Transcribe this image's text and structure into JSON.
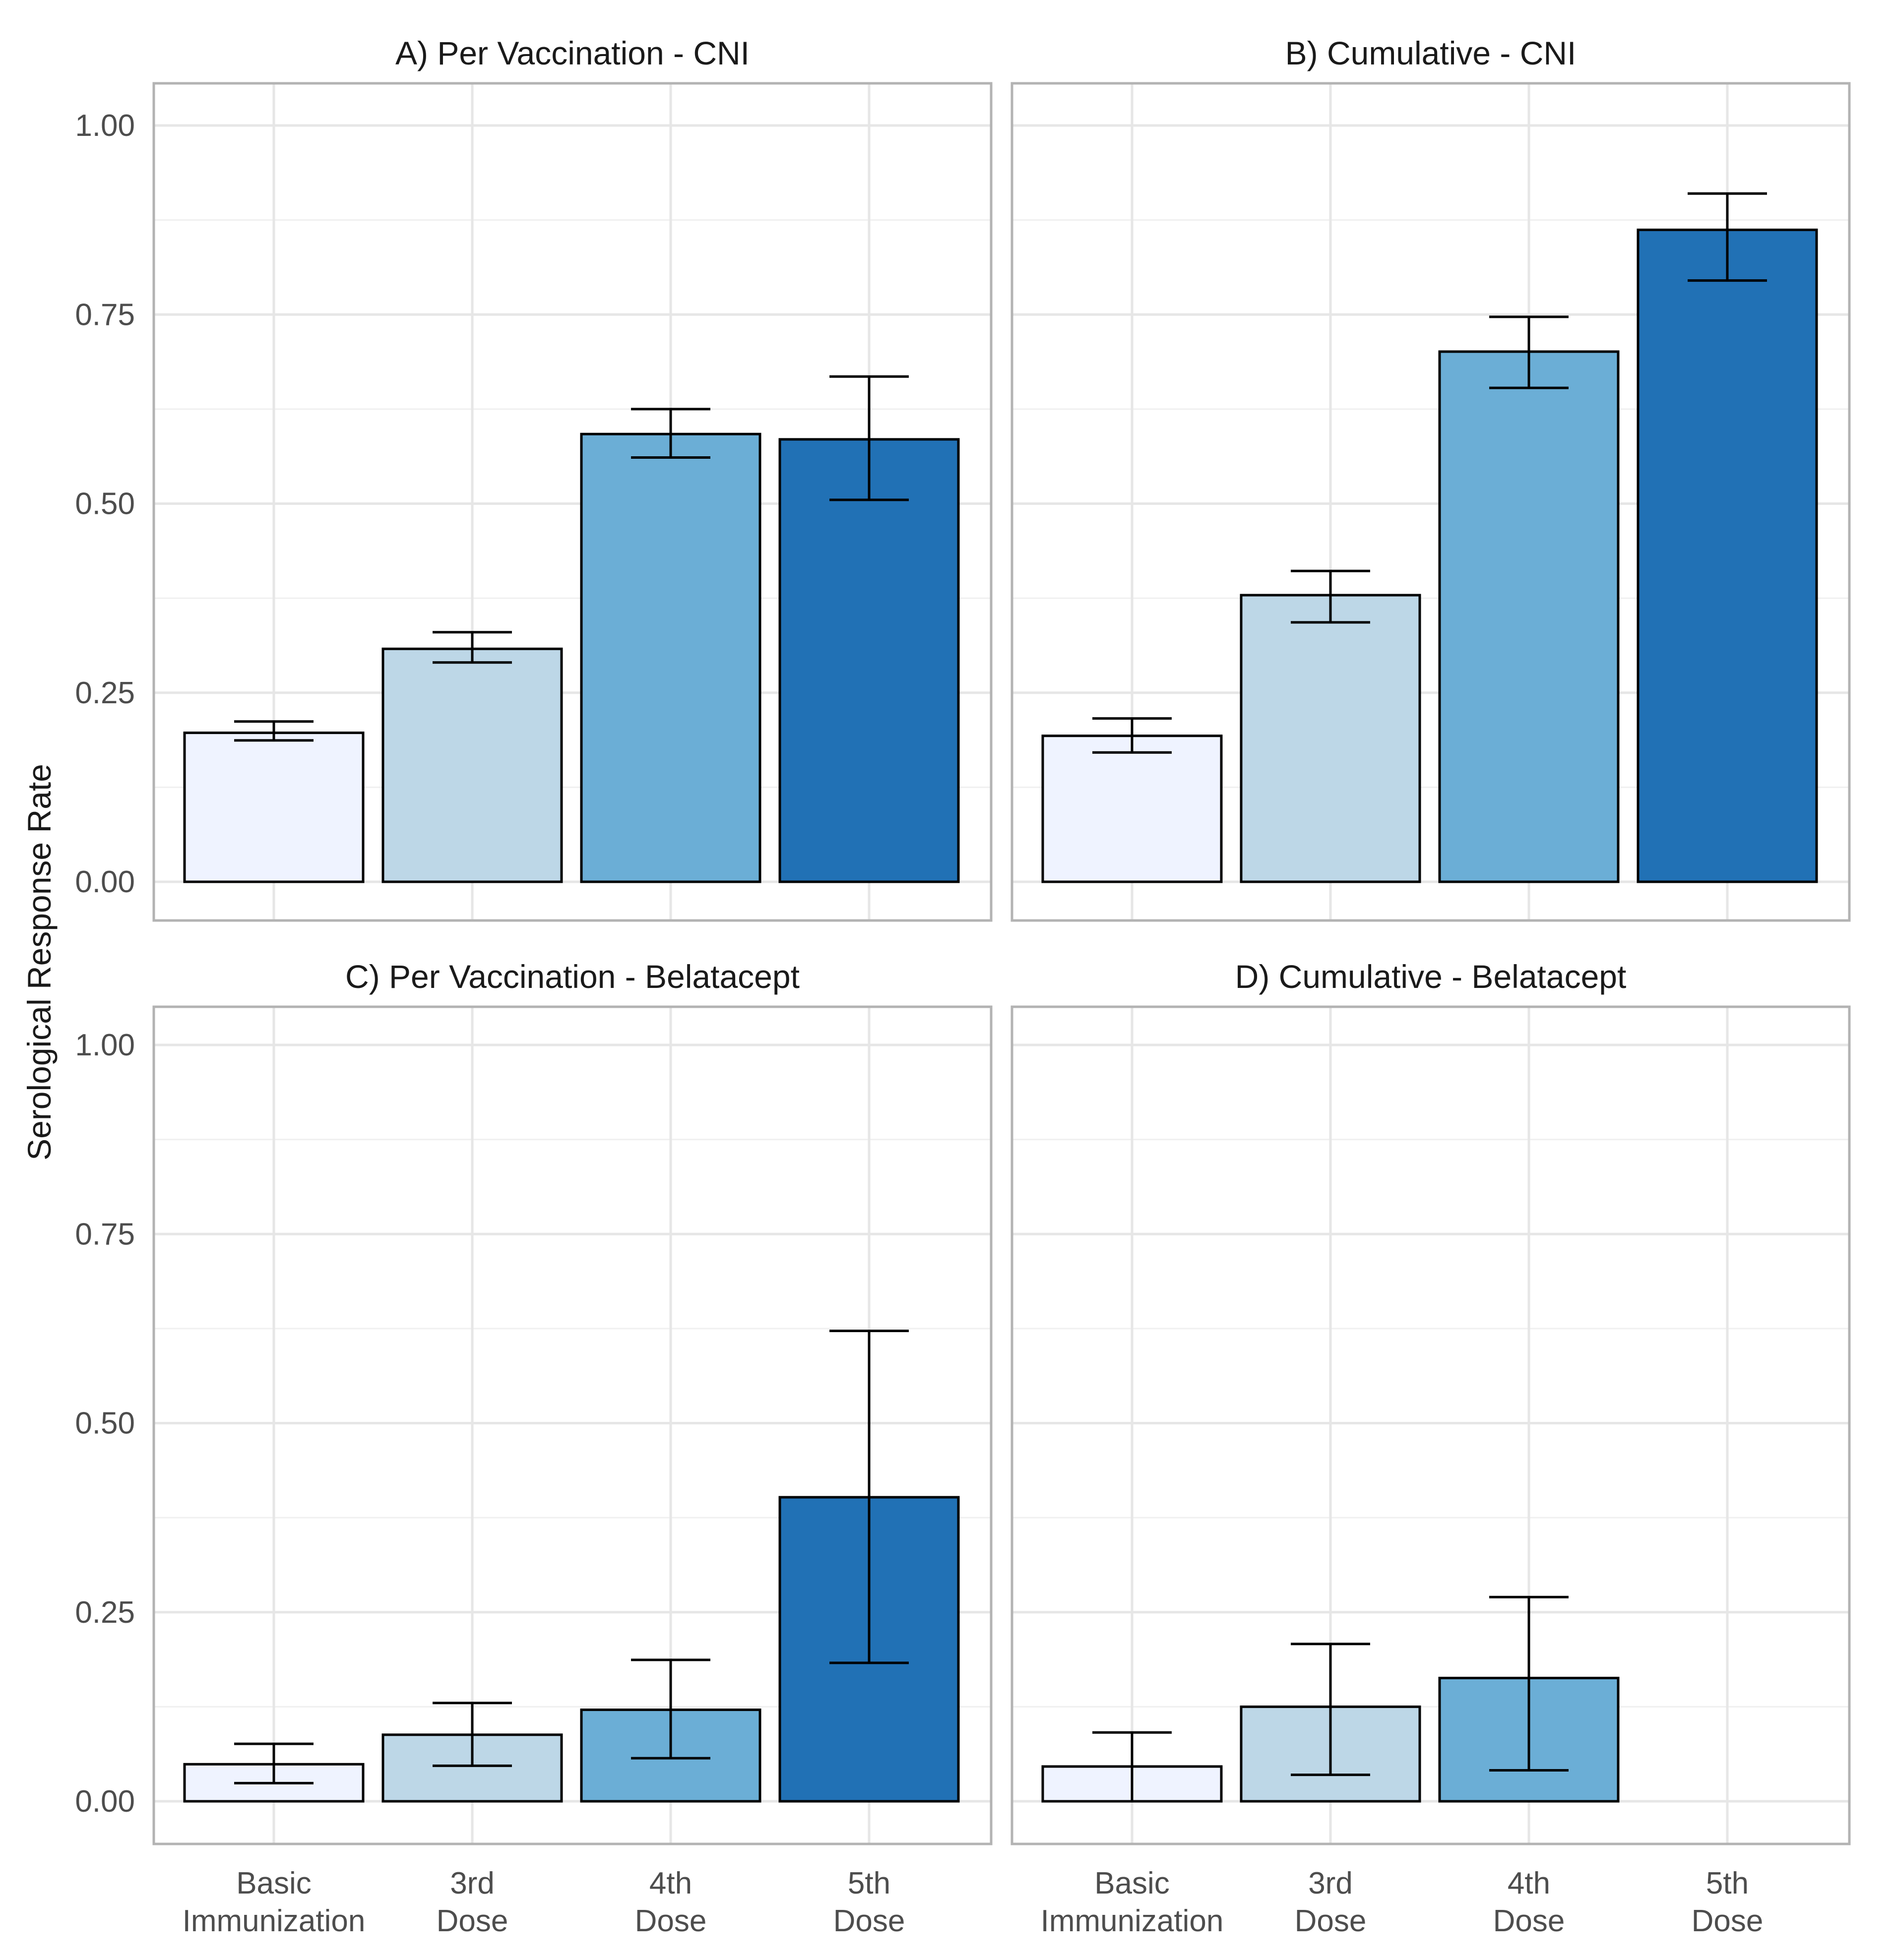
{
  "chart_data": {
    "type": "bar",
    "ylabel": "Serological Response Rate",
    "ylim": [
      0,
      1.0
    ],
    "yticks": [
      "0.00",
      "0.25",
      "0.50",
      "0.75",
      "1.00"
    ],
    "categories": [
      [
        "Basic",
        "Immunization"
      ],
      [
        "3rd",
        "Dose"
      ],
      [
        "4th",
        "Dose"
      ],
      [
        "5th",
        "Dose"
      ]
    ],
    "bar_colors": [
      "#eff3ff",
      "#bdd7e7",
      "#6baed6",
      "#2171b5"
    ],
    "panels": [
      {
        "title": "A) Per Vaccination - CNI",
        "values": [
          0.197,
          0.308,
          0.592,
          0.585
        ],
        "lower": [
          0.187,
          0.29,
          0.561,
          0.505
        ],
        "upper": [
          0.212,
          0.33,
          0.625,
          0.668
        ]
      },
      {
        "title": "B) Cumulative - CNI",
        "values": [
          0.193,
          0.379,
          0.701,
          0.862
        ],
        "lower": [
          0.171,
          0.343,
          0.653,
          0.795
        ],
        "upper": [
          0.216,
          0.411,
          0.747,
          0.91
        ]
      },
      {
        "title": "C) Per Vaccination - Belatacept",
        "values": [
          0.049,
          0.088,
          0.121,
          0.402
        ],
        "lower": [
          0.024,
          0.047,
          0.057,
          0.183
        ],
        "upper": [
          0.076,
          0.13,
          0.187,
          0.622
        ]
      },
      {
        "title": "D) Cumulative - Belatacept",
        "values": [
          0.046,
          0.125,
          0.163,
          0.0
        ],
        "lower": [
          0.0,
          0.035,
          0.041,
          null
        ],
        "upper": [
          0.091,
          0.208,
          0.27,
          null
        ]
      }
    ]
  }
}
